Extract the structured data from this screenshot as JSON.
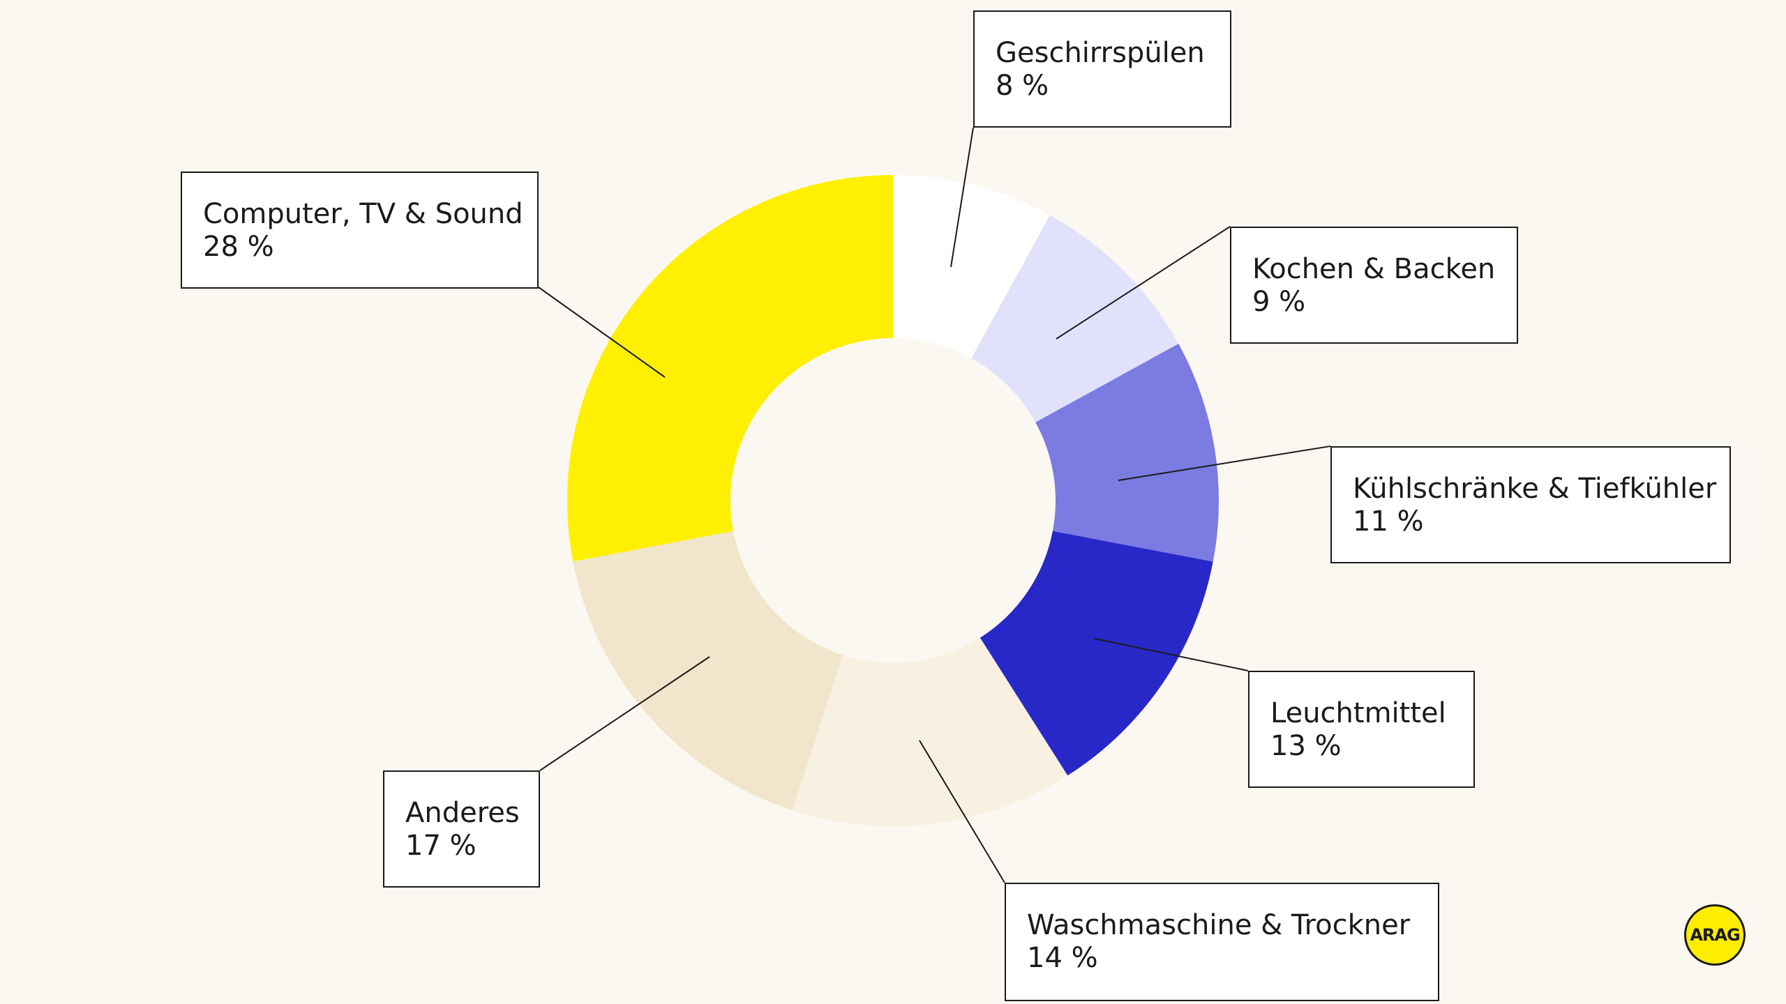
{
  "chart_data": {
    "type": "pie",
    "variant": "donut",
    "title": "",
    "unit": "%",
    "start": "top",
    "direction": "clockwise",
    "slices": [
      {
        "label": "Geschirrspülen",
        "value": 8,
        "display": "8 %",
        "color": "#ffffff"
      },
      {
        "label": "Kochen & Backen",
        "value": 9,
        "display": "9 %",
        "color": "#e2e1fb"
      },
      {
        "label": "Kühlschränke & Tiefkühler",
        "value": 11,
        "display": "11 %",
        "color": "#7b7be2"
      },
      {
        "label": "Leuchtmittel",
        "value": 13,
        "display": "13 %",
        "color": "#2828c8"
      },
      {
        "label": "Waschmaschine & Trockner",
        "value": 14,
        "display": "14 %",
        "color": "#f8f0e0"
      },
      {
        "label": "Anderes",
        "value": 17,
        "display": "17 %",
        "color": "#f1e6cb"
      },
      {
        "label": "Computer, TV & Sound",
        "value": 28,
        "display": "28 %",
        "color": "#ffef00"
      }
    ]
  },
  "logo": {
    "text": "ARAG",
    "color": "#ffed00"
  }
}
